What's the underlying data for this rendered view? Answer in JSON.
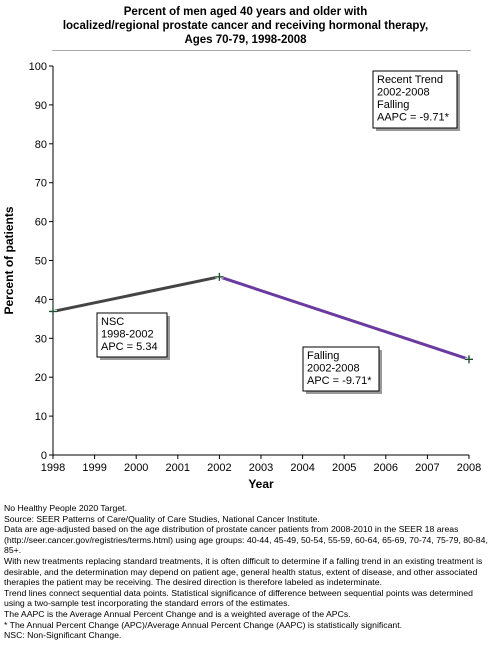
{
  "chart_data": {
    "type": "line",
    "title_lines": [
      "Percent of men aged 40 years and older with",
      "localized/regional prostate cancer and receiving hormonal therapy,",
      "Ages 70-79,  1998-2008"
    ],
    "xlabel": "Year",
    "ylabel": "Percent of patients",
    "xlim": [
      1998,
      2008
    ],
    "ylim": [
      0,
      100
    ],
    "x_ticks": [
      "1998",
      "1999",
      "2000",
      "2001",
      "2002",
      "2003",
      "2004",
      "2005",
      "2006",
      "2007",
      "2008"
    ],
    "y_ticks": [
      "0",
      "10",
      "20",
      "30",
      "40",
      "50",
      "60",
      "70",
      "80",
      "90",
      "100"
    ],
    "grid": false,
    "points": [
      {
        "x": 1998,
        "y": 36.9
      },
      {
        "x": 2002,
        "y": 45.8
      },
      {
        "x": 2008,
        "y": 24.6
      }
    ],
    "trend_segments": [
      {
        "x_start": 1998,
        "y_start": 36.9,
        "x_end": 2002,
        "y_end": 45.8,
        "color": "#444444"
      },
      {
        "x_start": 2002,
        "y_start": 45.8,
        "x_end": 2008,
        "y_end": 24.6,
        "color": "#6a3aa0"
      }
    ],
    "annotations": {
      "recent_trend": [
        "Recent Trend",
        "2002-2008",
        "Falling",
        "AAPC = -9.71*"
      ],
      "segment_1": [
        "NSC",
        "1998-2002",
        "APC =  5.34"
      ],
      "segment_2": [
        "Falling",
        "2002-2008",
        "APC = -9.71*"
      ]
    }
  },
  "notes": [
    "No Healthy People 2020 Target.",
    "Source: SEER Patterns of Care/Quality of Care Studies, National Cancer Institute.",
    "Data are age-adjusted based on the age distribution of prostate cancer patients from 2008-2010 in the SEER 18 areas (http://seer.cancer.gov/registries/terms.html) using age groups: 40-44, 45-49, 50-54, 55-59, 60-64, 65-69, 70-74, 75-79, 80-84, 85+.",
    "With new treatments replacing standard treatments, it is often difficult to determine if a falling trend in an existing treatment is desirable, and the determination may depend on patient age, general health status, extent of disease, and other associated therapies the patient may be receiving.  The desired direction is therefore labeled as indeterminate.",
    "Trend lines connect sequential data points. Statistical significance of difference between sequential points was determined using a two-sample test incorporating the standard errors of the estimates.",
    "The AAPC is the Average Annual Percent Change and is a weighted average of the APCs.",
    "* The Annual Percent Change (APC)/Average Annual Percent Change (AAPC) is statistically significant.",
    "NSC: Non-Significant Change."
  ]
}
